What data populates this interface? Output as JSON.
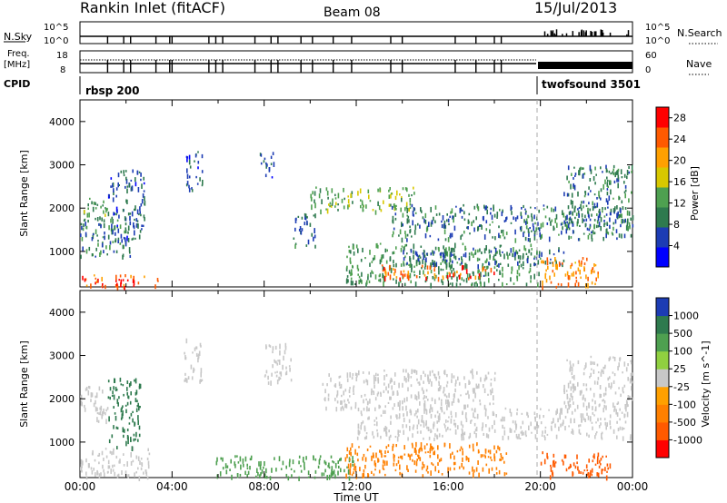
{
  "header": {
    "station": "Rankin Inlet (fitACF)",
    "beam": "Beam 08",
    "date": "15/Jul/2013"
  },
  "panels": {
    "nsky": {
      "label": "N.Sky",
      "ticks": [
        "10^5",
        "10^0"
      ]
    },
    "nsearch": {
      "label": "N.Search",
      "ticks": [
        "10^5",
        "10^0"
      ]
    },
    "freq": {
      "label_top": "Freq.",
      "label_bottom": "[MHz]",
      "ticks": [
        "18",
        "8"
      ]
    },
    "nave": {
      "label": "Nave",
      "ticks": [
        "60",
        "0"
      ]
    },
    "cpid": {
      "label": "CPID",
      "segments": [
        {
          "name": "rbsp 200",
          "start_hr": 0,
          "end_hr": 20
        },
        {
          "name": "twofsound 3501",
          "start_hr": 20,
          "end_hr": 24
        }
      ]
    }
  },
  "colors": {
    "power": [
      "#0000ff",
      "#1c3cb4",
      "#2e7a4e",
      "#4ea050",
      "#d8c800",
      "#ffa000",
      "#ff5a00",
      "#ff0000"
    ],
    "velocity": [
      "#1c3cb4",
      "#2e7a4e",
      "#4ea050",
      "#90d040",
      "#c8c8c8",
      "#ffa000",
      "#ff8000",
      "#ff5a00",
      "#ff0000"
    ],
    "ground_scatter": "#c8c8c8"
  },
  "chart_data": [
    {
      "type": "heatmap",
      "title": "Power",
      "ylabel": "Slant Range [km]",
      "xlabel": "Time UT",
      "x_ticks": [
        "00:00",
        "04:00",
        "08:00",
        "12:00",
        "16:00",
        "20:00",
        "00:00"
      ],
      "y_ticks": [
        "1000",
        "2000",
        "3000",
        "4000"
      ],
      "xlim_hr": [
        0,
        24
      ],
      "ylim_km": [
        180,
        4500
      ],
      "colorbar": {
        "label": "Power [dB]",
        "ticks": [
          "4",
          "8",
          "12",
          "16",
          "20",
          "24",
          "28"
        ],
        "range": [
          0,
          30
        ]
      },
      "regions": [
        {
          "t0": 0,
          "t1": 3.5,
          "r0": 200,
          "r1": 480,
          "value": 25
        },
        {
          "t0": 0,
          "t1": 1.2,
          "r0": 1850,
          "r1": 2250,
          "value": 13
        },
        {
          "t0": 0,
          "t1": 2.2,
          "r0": 900,
          "r1": 1900,
          "value": 10
        },
        {
          "t0": 1.2,
          "t1": 2.8,
          "r0": 1200,
          "r1": 2900,
          "value": 7
        },
        {
          "t0": 4.6,
          "t1": 5.3,
          "r0": 2400,
          "r1": 3400,
          "value": 7
        },
        {
          "t0": 7.8,
          "t1": 8.4,
          "r0": 2600,
          "r1": 3300,
          "value": 6
        },
        {
          "t0": 9.2,
          "t1": 10.2,
          "r0": 1100,
          "r1": 1900,
          "value": 8
        },
        {
          "t0": 10.0,
          "t1": 14.5,
          "r0": 1950,
          "r1": 2500,
          "value": 14
        },
        {
          "t0": 11.5,
          "t1": 20.0,
          "r0": 250,
          "r1": 1200,
          "value": 11
        },
        {
          "t0": 13.0,
          "t1": 18.0,
          "r0": 400,
          "r1": 700,
          "value": 24
        },
        {
          "t0": 13.5,
          "t1": 24.0,
          "r0": 1300,
          "r1": 2100,
          "value": 9
        },
        {
          "t0": 14.0,
          "t1": 21.0,
          "r0": 700,
          "r1": 1100,
          "value": 8
        },
        {
          "t0": 20.0,
          "t1": 22.5,
          "r0": 200,
          "r1": 900,
          "value": 22
        },
        {
          "t0": 21.0,
          "t1": 24.0,
          "r0": 1500,
          "r1": 3000,
          "value": 9
        }
      ]
    },
    {
      "type": "heatmap",
      "title": "Velocity",
      "ylabel": "Slant Range [km]",
      "xlabel": "Time UT",
      "x_ticks": [
        "00:00",
        "04:00",
        "08:00",
        "12:00",
        "16:00",
        "20:00",
        "00:00"
      ],
      "y_ticks": [
        "1000",
        "2000",
        "3000",
        "4000"
      ],
      "xlim_hr": [
        0,
        24
      ],
      "ylim_km": [
        180,
        4500
      ],
      "colorbar": {
        "label": "Velocity [m s^-1]",
        "ticks": [
          "1000",
          "500",
          "100",
          "25",
          "-25",
          "-100",
          "-500",
          "-1000"
        ]
      },
      "regions": [
        {
          "t0": 0,
          "t1": 1.2,
          "r0": 1500,
          "r1": 2300,
          "value": "gs"
        },
        {
          "t0": 0,
          "t1": 3.0,
          "r0": 200,
          "r1": 900,
          "value": "gs"
        },
        {
          "t0": 1.2,
          "t1": 2.6,
          "r0": 900,
          "r1": 2500,
          "value": 250
        },
        {
          "t0": 4.5,
          "t1": 5.3,
          "r0": 2400,
          "r1": 3400,
          "value": "gs"
        },
        {
          "t0": 5.8,
          "t1": 12.0,
          "r0": 200,
          "r1": 700,
          "value": 60
        },
        {
          "t0": 8.0,
          "t1": 9.2,
          "r0": 2400,
          "r1": 3300,
          "value": "gs"
        },
        {
          "t0": 10.5,
          "t1": 18.0,
          "r0": 1800,
          "r1": 2700,
          "value": "gs"
        },
        {
          "t0": 11.5,
          "t1": 18.5,
          "r0": 250,
          "r1": 1000,
          "value": -200
        },
        {
          "t0": 12.0,
          "t1": 24.0,
          "r0": 1100,
          "r1": 1800,
          "value": "gs"
        },
        {
          "t0": 20.0,
          "t1": 23.0,
          "r0": 200,
          "r1": 800,
          "value": -300
        },
        {
          "t0": 21.0,
          "t1": 24.0,
          "r0": 1800,
          "r1": 3000,
          "value": "gs"
        }
      ]
    }
  ]
}
